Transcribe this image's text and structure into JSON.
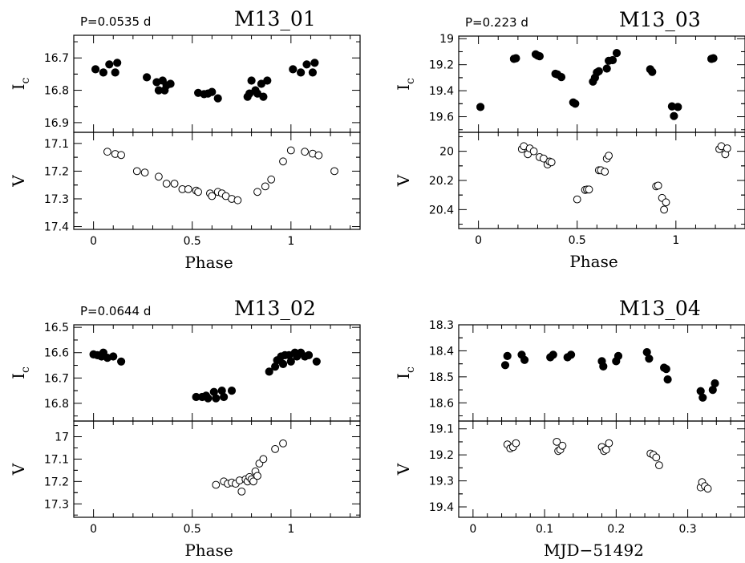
{
  "chart_data": [
    {
      "type": "scatter",
      "title": "M13_01",
      "period_label": "P=0.0535 d",
      "xlabel": "Phase",
      "xlim": [
        -0.1,
        1.35
      ],
      "xticks": [
        0,
        0.5,
        1
      ],
      "xtick_labels": [
        "0",
        "0.5",
        "1"
      ],
      "panels": [
        {
          "ylabel": "I",
          "ylabel_sub": "c",
          "ylim": [
            16.93,
            16.63
          ],
          "yticks": [
            16.7,
            16.8,
            16.9
          ],
          "ytick_labels": [
            "16.7",
            "16.8",
            "16.9"
          ],
          "marker": "filled",
          "x": [
            0.01,
            0.05,
            0.08,
            0.11,
            0.12,
            0.27,
            0.32,
            0.33,
            0.35,
            0.36,
            0.37,
            0.39,
            0.53,
            0.56,
            0.58,
            0.6,
            0.63,
            0.78,
            0.79,
            0.8,
            0.82,
            0.83,
            0.85,
            0.86,
            0.88,
            1.01,
            1.05,
            1.08,
            1.11,
            1.12
          ],
          "y": [
            16.735,
            16.745,
            16.72,
            16.745,
            16.715,
            16.76,
            16.775,
            16.8,
            16.77,
            16.8,
            16.785,
            16.78,
            16.808,
            16.812,
            16.81,
            16.805,
            16.825,
            16.82,
            16.81,
            16.77,
            16.8,
            16.81,
            16.78,
            16.82,
            16.77,
            16.735,
            16.745,
            16.72,
            16.745,
            16.715
          ]
        },
        {
          "ylabel": "V",
          "ylim": [
            17.41,
            17.06
          ],
          "yticks": [
            17.1,
            17.2,
            17.3,
            17.4
          ],
          "ytick_labels": [
            "17.1",
            "17.2",
            "17.3",
            "17.4"
          ],
          "marker": "open",
          "x": [
            0.07,
            0.11,
            0.14,
            0.22,
            0.26,
            0.33,
            0.37,
            0.41,
            0.45,
            0.48,
            0.52,
            0.53,
            0.59,
            0.6,
            0.63,
            0.65,
            0.67,
            0.7,
            0.73,
            0.83,
            0.87,
            0.9,
            0.96,
            1.0,
            1.07,
            1.11,
            1.14,
            1.22
          ],
          "y": [
            17.13,
            17.138,
            17.142,
            17.2,
            17.205,
            17.22,
            17.245,
            17.245,
            17.265,
            17.265,
            17.27,
            17.275,
            17.28,
            17.29,
            17.275,
            17.28,
            17.29,
            17.3,
            17.305,
            17.275,
            17.255,
            17.23,
            17.165,
            17.125,
            17.13,
            17.137,
            17.143,
            17.2
          ]
        }
      ]
    },
    {
      "type": "scatter",
      "title": "M13_03",
      "period_label": "P=0.223 d",
      "xlabel": "Phase",
      "xlim": [
        -0.1,
        1.35
      ],
      "xticks": [
        0,
        0.5,
        1
      ],
      "xtick_labels": [
        "0",
        "0.5",
        "1"
      ],
      "panels": [
        {
          "ylabel": "I",
          "ylabel_sub": "c",
          "ylim": [
            19.72,
            18.98
          ],
          "yticks": [
            19.0,
            19.2,
            19.4,
            19.6
          ],
          "ytick_labels": [
            "19",
            "19.2",
            "19.4",
            "19.6"
          ],
          "marker": "filled",
          "x": [
            0.01,
            0.18,
            0.19,
            0.29,
            0.3,
            0.31,
            0.39,
            0.4,
            0.42,
            0.48,
            0.49,
            0.58,
            0.59,
            0.6,
            0.61,
            0.65,
            0.66,
            0.68,
            0.7,
            0.87,
            0.88,
            0.98,
            0.99,
            1.01,
            1.18,
            1.19
          ],
          "y": [
            19.525,
            19.155,
            19.15,
            19.12,
            19.13,
            19.135,
            19.27,
            19.275,
            19.295,
            19.49,
            19.5,
            19.33,
            19.3,
            19.26,
            19.25,
            19.23,
            19.17,
            19.165,
            19.11,
            19.235,
            19.255,
            19.52,
            19.595,
            19.525,
            19.155,
            19.15
          ]
        },
        {
          "ylabel": "V",
          "ylim": [
            20.53,
            19.87
          ],
          "yticks": [
            20.0,
            20.2,
            20.4
          ],
          "ytick_labels": [
            "20",
            "20.2",
            "20.4"
          ],
          "marker": "open",
          "x": [
            0.22,
            0.23,
            0.25,
            0.26,
            0.28,
            0.31,
            0.33,
            0.35,
            0.36,
            0.37,
            0.5,
            0.54,
            0.55,
            0.56,
            0.61,
            0.62,
            0.64,
            0.65,
            0.66,
            0.9,
            0.91,
            0.93,
            0.94,
            0.95,
            1.22,
            1.23,
            1.25,
            1.26
          ],
          "y": [
            19.985,
            19.965,
            20.02,
            19.98,
            20.0,
            20.04,
            20.05,
            20.09,
            20.07,
            20.075,
            20.33,
            20.265,
            20.262,
            20.262,
            20.13,
            20.13,
            20.14,
            20.05,
            20.03,
            20.24,
            20.235,
            20.32,
            20.4,
            20.35,
            19.985,
            19.965,
            20.02,
            19.98
          ]
        }
      ]
    },
    {
      "type": "scatter",
      "title": "M13_02",
      "period_label": "P=0.0644 d",
      "xlabel": "Phase",
      "xlim": [
        -0.1,
        1.35
      ],
      "xticks": [
        0,
        0.5,
        1
      ],
      "xtick_labels": [
        "0",
        "0.5",
        "1"
      ],
      "panels": [
        {
          "ylabel": "I",
          "ylabel_sub": "c",
          "ylim": [
            16.87,
            16.49
          ],
          "yticks": [
            16.5,
            16.6,
            16.7,
            16.8
          ],
          "ytick_labels": [
            "16.5",
            "16.6",
            "16.7",
            "16.8"
          ],
          "marker": "filled",
          "x": [
            0.0,
            0.02,
            0.04,
            0.05,
            0.07,
            0.1,
            0.14,
            0.52,
            0.55,
            0.57,
            0.58,
            0.61,
            0.62,
            0.65,
            0.66,
            0.7,
            0.89,
            0.92,
            0.93,
            0.95,
            0.96,
            0.97,
            0.99,
            1.0,
            1.02,
            1.03,
            1.05,
            1.07,
            1.09,
            1.13
          ],
          "y": [
            16.607,
            16.61,
            16.615,
            16.6,
            16.62,
            16.615,
            16.635,
            16.775,
            16.775,
            16.77,
            16.78,
            16.755,
            16.78,
            16.75,
            16.775,
            16.75,
            16.675,
            16.655,
            16.63,
            16.615,
            16.645,
            16.61,
            16.61,
            16.635,
            16.6,
            16.615,
            16.6,
            16.615,
            16.61,
            16.635
          ]
        },
        {
          "ylabel": "V",
          "ylim": [
            17.36,
            16.93
          ],
          "yticks": [
            17.0,
            17.1,
            17.2,
            17.3
          ],
          "ytick_labels": [
            "17",
            "17.1",
            "17.2",
            "17.3"
          ],
          "marker": "open",
          "x": [
            0.62,
            0.66,
            0.68,
            0.7,
            0.72,
            0.74,
            0.75,
            0.77,
            0.78,
            0.79,
            0.8,
            0.81,
            0.82,
            0.83,
            0.84,
            0.86,
            0.92,
            0.96
          ],
          "y": [
            17.215,
            17.2,
            17.21,
            17.205,
            17.21,
            17.195,
            17.245,
            17.19,
            17.2,
            17.18,
            17.19,
            17.2,
            17.155,
            17.175,
            17.12,
            17.1,
            17.055,
            17.03
          ]
        }
      ]
    },
    {
      "type": "scatter",
      "title": "M13_04",
      "xlabel": "MJD−51492",
      "xlim": [
        -0.02,
        0.38
      ],
      "xticks": [
        0,
        0.1,
        0.2,
        0.3
      ],
      "xtick_labels": [
        "0",
        "0.1",
        "0.2",
        "0.3"
      ],
      "panels": [
        {
          "ylabel": "I",
          "ylabel_sub": "c",
          "ylim": [
            18.67,
            18.3
          ],
          "yticks": [
            18.3,
            18.4,
            18.5,
            18.6
          ],
          "ytick_labels": [
            "18.3",
            "18.4",
            "18.5",
            "18.6"
          ],
          "marker": "filled",
          "x": [
            0.045,
            0.048,
            0.068,
            0.072,
            0.108,
            0.112,
            0.132,
            0.137,
            0.18,
            0.182,
            0.2,
            0.203,
            0.243,
            0.246,
            0.267,
            0.27,
            0.272,
            0.318,
            0.321,
            0.335,
            0.338
          ],
          "y": [
            18.455,
            18.42,
            18.415,
            18.435,
            18.425,
            18.415,
            18.425,
            18.415,
            18.44,
            18.46,
            18.44,
            18.42,
            18.405,
            18.43,
            18.465,
            18.47,
            18.51,
            18.555,
            18.58,
            18.55,
            18.525
          ]
        },
        {
          "ylabel": "V",
          "ylim": [
            19.44,
            19.07
          ],
          "yticks": [
            19.1,
            19.2,
            19.3,
            19.4
          ],
          "ytick_labels": [
            "19.1",
            "19.2",
            "19.3",
            "19.4"
          ],
          "marker": "open",
          "x": [
            0.048,
            0.052,
            0.056,
            0.06,
            0.117,
            0.119,
            0.122,
            0.125,
            0.18,
            0.183,
            0.186,
            0.19,
            0.248,
            0.252,
            0.256,
            0.26,
            0.318,
            0.32,
            0.324,
            0.328
          ],
          "y": [
            19.16,
            19.175,
            19.17,
            19.155,
            19.15,
            19.185,
            19.18,
            19.165,
            19.17,
            19.185,
            19.18,
            19.155,
            19.195,
            19.2,
            19.21,
            19.24,
            19.325,
            19.305,
            19.32,
            19.33
          ]
        }
      ]
    }
  ]
}
